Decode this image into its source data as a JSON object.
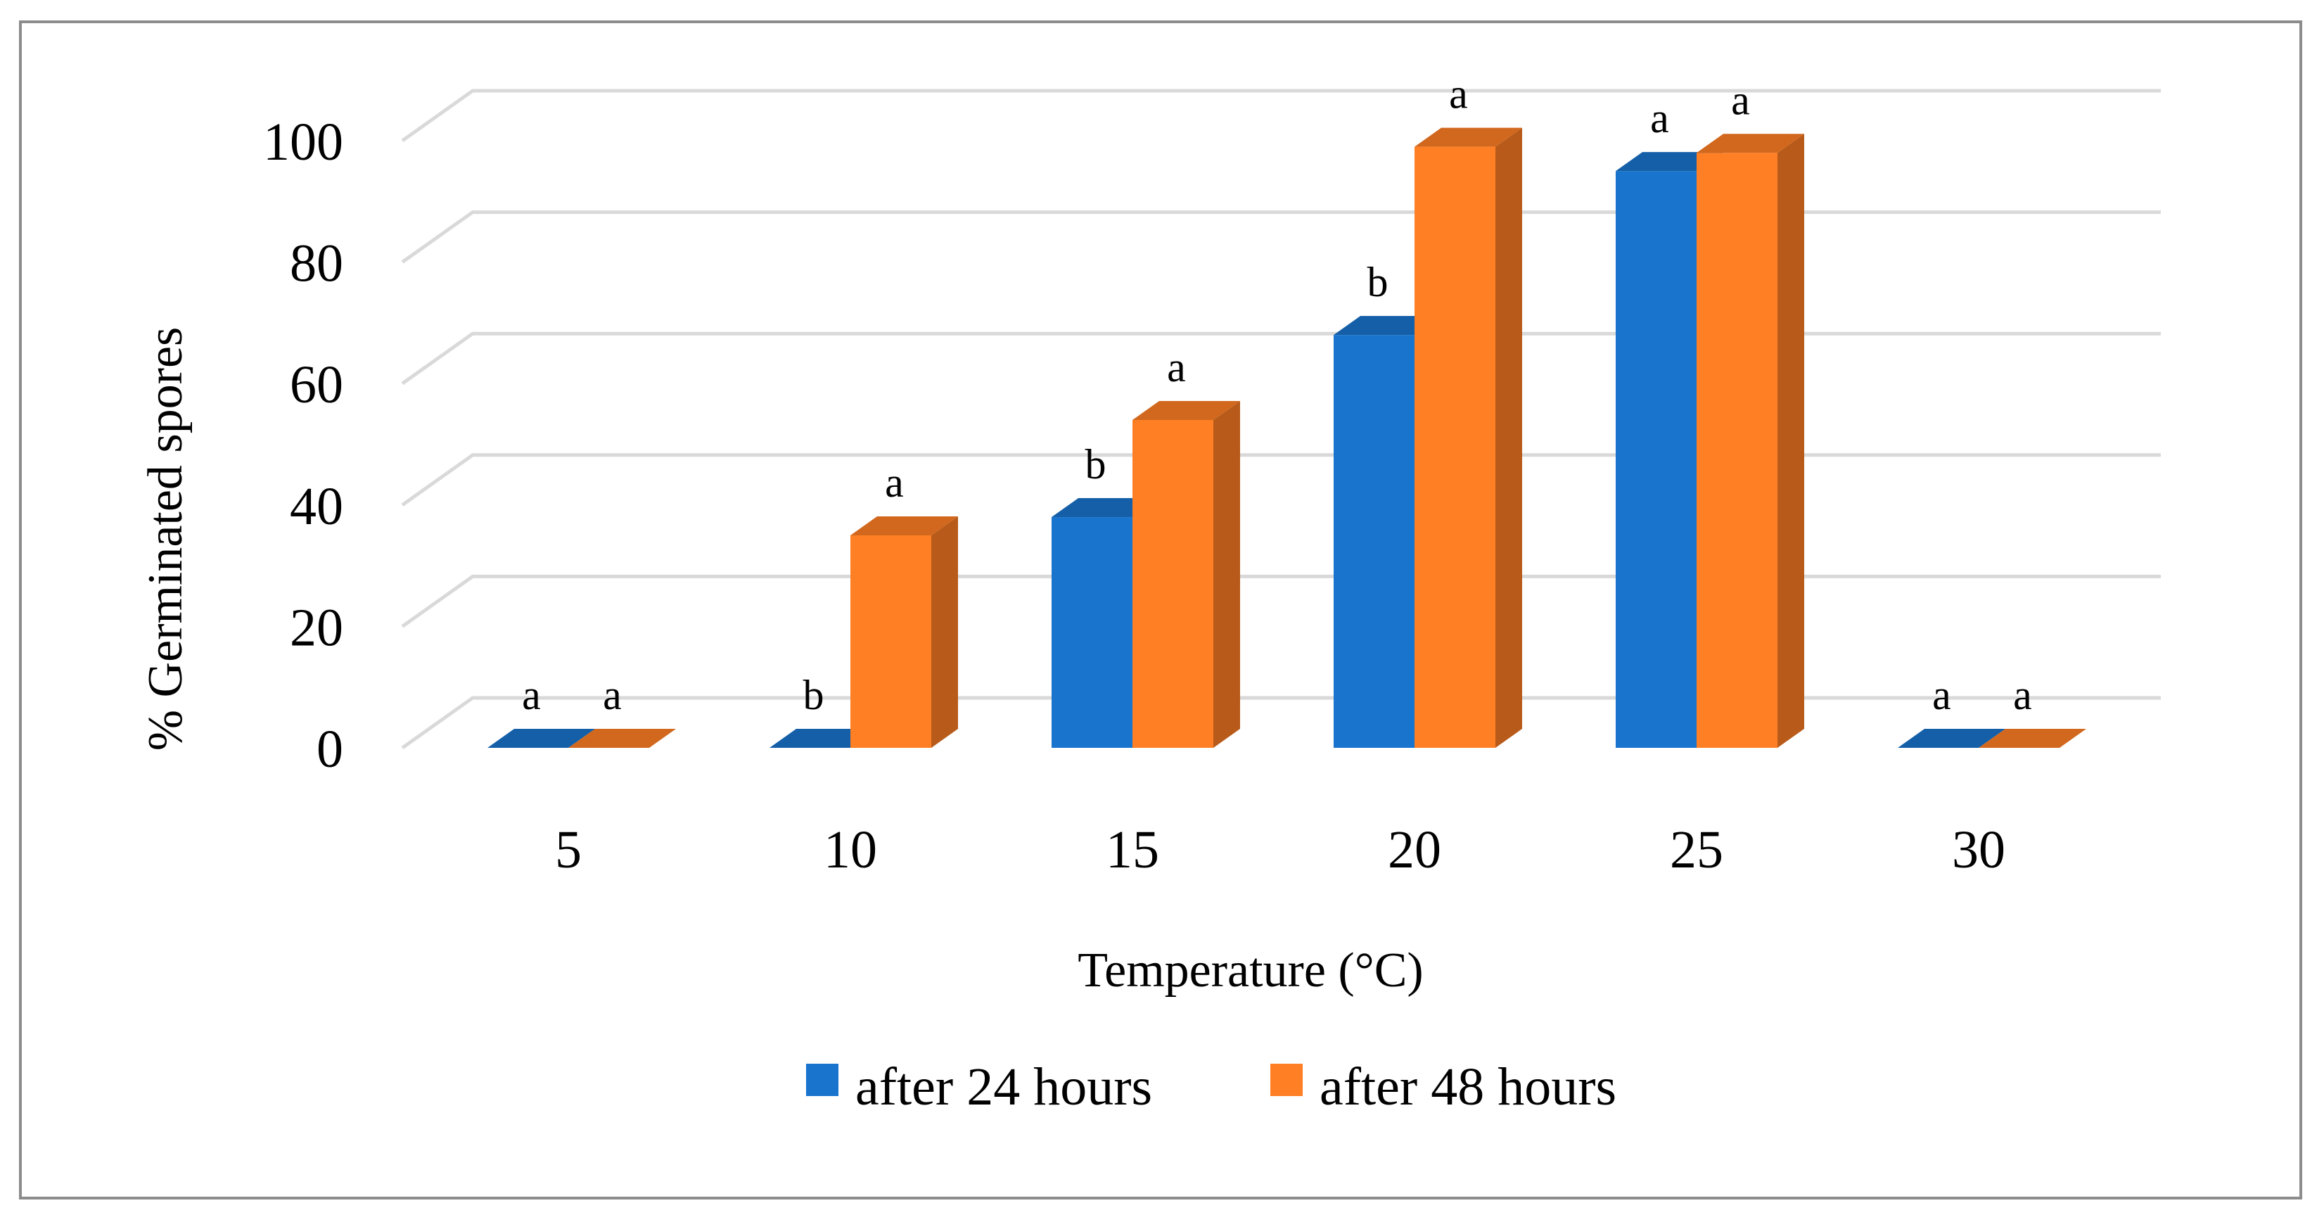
{
  "chart_data": {
    "type": "bar",
    "title": "",
    "xlabel": "Temperature (°C)",
    "ylabel": "% Germinated spores",
    "ylim": [
      0,
      100
    ],
    "yticks": [
      "0",
      "20",
      "40",
      "60",
      "80",
      "100"
    ],
    "categories": [
      "5",
      "10",
      "15",
      "20",
      "25",
      "30"
    ],
    "series": [
      {
        "name": "after 24 hours",
        "color": "#1874CD",
        "values": [
          0,
          0,
          38,
          68,
          95,
          0
        ],
        "significance": [
          "a",
          "b",
          "b",
          "b",
          "a",
          "a"
        ]
      },
      {
        "name": "after 48 hours",
        "color": "#FF7F24",
        "values": [
          0,
          35,
          54,
          99,
          98,
          0
        ],
        "significance": [
          "a",
          "a",
          "a",
          "a",
          "a",
          "a"
        ]
      }
    ],
    "grid": true,
    "legend_position": "bottom"
  }
}
